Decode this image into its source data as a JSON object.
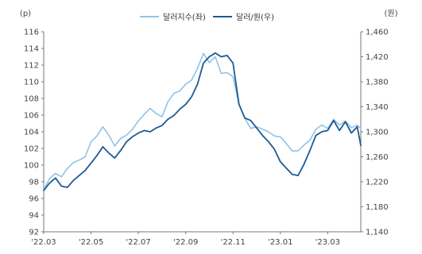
{
  "chart_data": {
    "type": "line",
    "left_unit": "(p)",
    "right_unit": "(원)",
    "left_axis": {
      "min": 92,
      "max": 116,
      "ticks": [
        92,
        94,
        96,
        98,
        100,
        102,
        104,
        106,
        108,
        110,
        112,
        114,
        116
      ]
    },
    "right_axis": {
      "min": 1140,
      "max": 1460,
      "ticks": [
        "1,140",
        "1,180",
        "1,220",
        "1,260",
        "1,300",
        "1,340",
        "1,380",
        "1,420",
        "1,460"
      ],
      "tick_values": [
        1140,
        1180,
        1220,
        1260,
        1300,
        1340,
        1380,
        1420,
        1460
      ]
    },
    "x_ticks": [
      "'22.03",
      "'22.05",
      "'22.07",
      "'22.09",
      "'22.11",
      "'23.01",
      "'23.03"
    ],
    "x_tick_months": [
      0,
      2,
      4,
      6,
      8,
      10,
      12
    ],
    "x_range_months": [
      0,
      13.4
    ],
    "grid": false,
    "legend_position": "top-center",
    "series": [
      {
        "name": "달러지수(좌)",
        "axis": "left",
        "color": "#8fc3e8",
        "points": [
          [
            0.0,
            97.0
          ],
          [
            0.25,
            98.4
          ],
          [
            0.5,
            99.0
          ],
          [
            0.75,
            98.6
          ],
          [
            1.0,
            99.6
          ],
          [
            1.25,
            100.3
          ],
          [
            1.5,
            100.6
          ],
          [
            1.75,
            101.0
          ],
          [
            2.0,
            102.8
          ],
          [
            2.25,
            103.5
          ],
          [
            2.5,
            104.6
          ],
          [
            2.75,
            103.6
          ],
          [
            3.0,
            102.3
          ],
          [
            3.25,
            103.2
          ],
          [
            3.5,
            103.6
          ],
          [
            3.75,
            104.3
          ],
          [
            4.0,
            105.3
          ],
          [
            4.25,
            106.1
          ],
          [
            4.5,
            106.8
          ],
          [
            4.75,
            106.2
          ],
          [
            5.0,
            105.8
          ],
          [
            5.25,
            107.6
          ],
          [
            5.5,
            108.6
          ],
          [
            5.75,
            108.9
          ],
          [
            6.0,
            109.7
          ],
          [
            6.25,
            110.2
          ],
          [
            6.5,
            111.6
          ],
          [
            6.75,
            113.4
          ],
          [
            7.0,
            112.3
          ],
          [
            7.25,
            113.0
          ],
          [
            7.5,
            111.0
          ],
          [
            7.75,
            111.1
          ],
          [
            8.0,
            110.6
          ],
          [
            8.25,
            107.3
          ],
          [
            8.5,
            105.6
          ],
          [
            8.75,
            104.4
          ],
          [
            9.0,
            104.6
          ],
          [
            9.25,
            104.3
          ],
          [
            9.5,
            104.0
          ],
          [
            9.75,
            103.5
          ],
          [
            10.0,
            103.4
          ],
          [
            10.25,
            102.6
          ],
          [
            10.5,
            101.7
          ],
          [
            10.75,
            101.7
          ],
          [
            11.0,
            102.4
          ],
          [
            11.25,
            103.0
          ],
          [
            11.5,
            104.3
          ],
          [
            11.75,
            104.8
          ],
          [
            12.0,
            104.4
          ],
          [
            12.25,
            105.5
          ],
          [
            12.5,
            104.8
          ],
          [
            12.75,
            105.3
          ],
          [
            13.0,
            104.5
          ],
          [
            13.25,
            104.8
          ],
          [
            13.4,
            104.4
          ]
        ]
      },
      {
        "name": "달러/원(우)",
        "axis": "right",
        "color": "#1e5a96",
        "points": [
          [
            0.0,
            1206
          ],
          [
            0.25,
            1218
          ],
          [
            0.5,
            1226
          ],
          [
            0.75,
            1213
          ],
          [
            1.0,
            1211
          ],
          [
            1.25,
            1222
          ],
          [
            1.5,
            1230
          ],
          [
            1.75,
            1238
          ],
          [
            2.0,
            1250
          ],
          [
            2.25,
            1262
          ],
          [
            2.5,
            1276
          ],
          [
            2.75,
            1266
          ],
          [
            3.0,
            1258
          ],
          [
            3.25,
            1270
          ],
          [
            3.5,
            1284
          ],
          [
            3.75,
            1292
          ],
          [
            4.0,
            1298
          ],
          [
            4.25,
            1302
          ],
          [
            4.5,
            1300
          ],
          [
            4.75,
            1306
          ],
          [
            5.0,
            1310
          ],
          [
            5.25,
            1320
          ],
          [
            5.5,
            1326
          ],
          [
            5.75,
            1336
          ],
          [
            6.0,
            1344
          ],
          [
            6.25,
            1356
          ],
          [
            6.5,
            1376
          ],
          [
            6.75,
            1410
          ],
          [
            7.0,
            1420
          ],
          [
            7.25,
            1426
          ],
          [
            7.5,
            1420
          ],
          [
            7.75,
            1422
          ],
          [
            8.0,
            1410
          ],
          [
            8.25,
            1344
          ],
          [
            8.5,
            1322
          ],
          [
            8.75,
            1318
          ],
          [
            9.0,
            1306
          ],
          [
            9.25,
            1294
          ],
          [
            9.5,
            1284
          ],
          [
            9.75,
            1272
          ],
          [
            10.0,
            1252
          ],
          [
            10.25,
            1242
          ],
          [
            10.5,
            1232
          ],
          [
            10.75,
            1230
          ],
          [
            11.0,
            1248
          ],
          [
            11.25,
            1270
          ],
          [
            11.5,
            1294
          ],
          [
            11.75,
            1300
          ],
          [
            12.0,
            1302
          ],
          [
            12.25,
            1318
          ],
          [
            12.5,
            1302
          ],
          [
            12.75,
            1316
          ],
          [
            13.0,
            1298
          ],
          [
            13.25,
            1308
          ],
          [
            13.4,
            1278
          ]
        ]
      }
    ]
  }
}
